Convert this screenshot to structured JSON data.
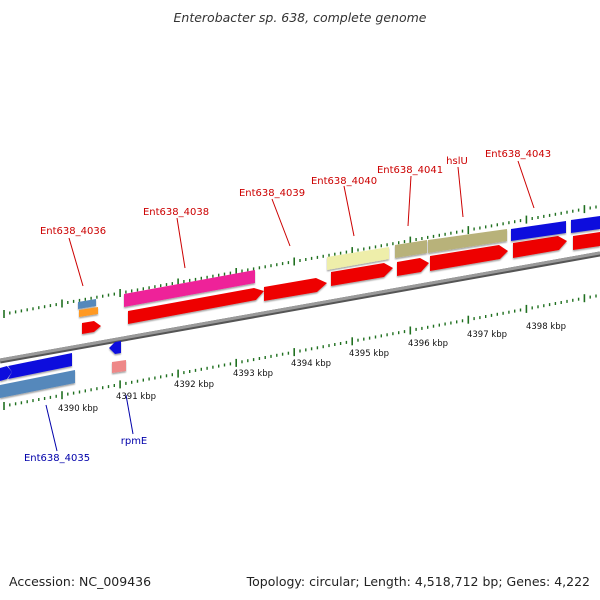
{
  "header": {
    "title": "Enterobacter sp. 638, complete genome"
  },
  "footer": {
    "accession": "Accession: NC_009436",
    "topology": "Topology: circular; Length: 4,518,712 bp; Genes: 4,222"
  },
  "genes_top_labels": [
    "Ent638_4036",
    "Ent638_4038",
    "Ent638_4039",
    "Ent638_4040",
    "Ent638_4041",
    "hslU",
    "Ent638_4043"
  ],
  "genes_bottom_labels": [
    "Ent638_4035",
    "rpmE"
  ],
  "scale_labels": [
    "4390 kbp",
    "4391 kbp",
    "4392 kbp",
    "4393 kbp",
    "4394 kbp",
    "4395 kbp",
    "4396 kbp",
    "4397 kbp",
    "4398 kbp"
  ],
  "colors": {
    "forward_cds": "#ee0000",
    "reverse_cds": "#1010dd",
    "magenta_cds": "#ee2299",
    "pale_yellow_cds": "#eeeeaa",
    "olive_cds": "#b8b27a",
    "steel_blue_cds": "#5588bb",
    "orange_cds": "#ff9922",
    "pink_cds": "#ee8888",
    "backbone": "#888888",
    "tick": "#207020"
  }
}
